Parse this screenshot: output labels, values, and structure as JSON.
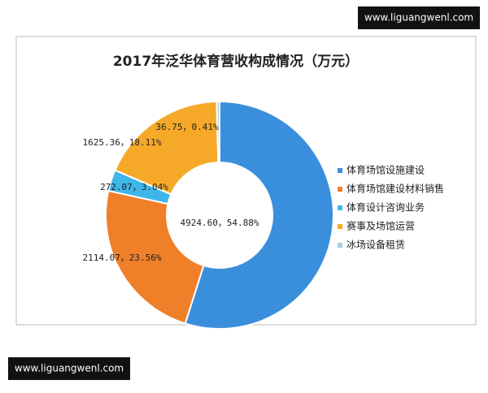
{
  "banners": {
    "top": "www.liguangwenl.com",
    "bottom": "www.liguangwenl.com"
  },
  "chart_data": {
    "type": "donut",
    "title": "2017年泛华体育营收构成情况（万元）",
    "categories": [
      "体育场馆设施建设",
      "体育场馆建设材料销售",
      "体育设计咨询业务",
      "赛事及场馆运营",
      "冰场设备租赁"
    ],
    "values": [
      4924.6,
      2114.07,
      272.07,
      1625.36,
      36.75
    ],
    "value_labels": [
      "4924.60，54.88%",
      "2114.07，23.56%",
      "272.07，3.04%",
      "1625.36，18.11%",
      "36.75，0.41%"
    ],
    "colors": [
      "#3a8fdc",
      "#f07f2a",
      "#3fb6ea",
      "#f6a928",
      "#a9cfe9"
    ],
    "legend": "right"
  }
}
